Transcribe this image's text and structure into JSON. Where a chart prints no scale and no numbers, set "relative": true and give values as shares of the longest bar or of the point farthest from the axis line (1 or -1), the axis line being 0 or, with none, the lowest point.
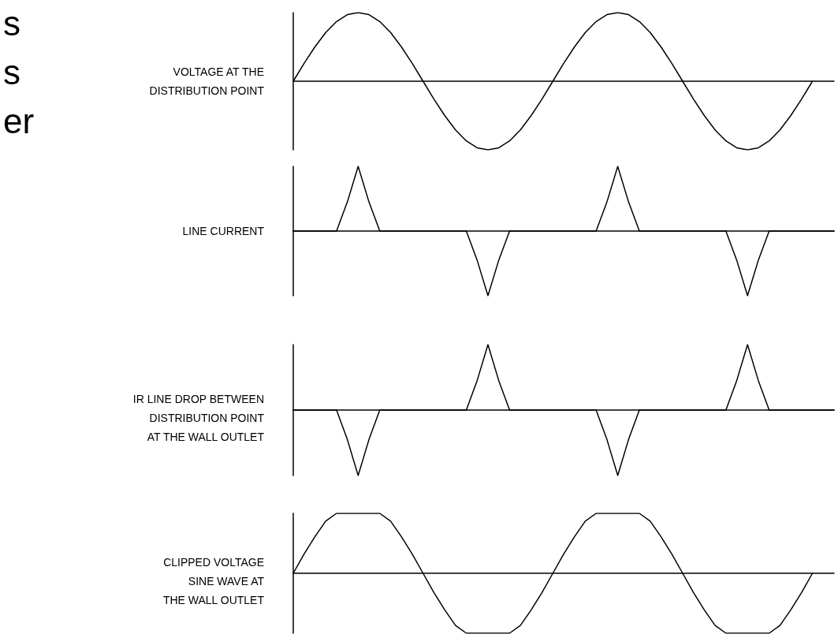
{
  "chart_data": [
    {
      "type": "line",
      "relative": true,
      "marker": "none",
      "ylabel": "VOLTAGE AT THE\nDISTRIBUTION POINT",
      "annotations": [
        "s",
        "s",
        "er"
      ],
      "categories": [
        null,
        null,
        null,
        null,
        null,
        null,
        null,
        null,
        null,
        null,
        null,
        null,
        null,
        null,
        null,
        null,
        null,
        null,
        null,
        null,
        null,
        null,
        null,
        null,
        null,
        null,
        null,
        null,
        null,
        null,
        null,
        null,
        null,
        null,
        null,
        null,
        null,
        null,
        null,
        null,
        null,
        null,
        null,
        null,
        null,
        null,
        null,
        null,
        null,
        null,
        null
      ],
      "series": [
        {
          "color": "#000000",
          "values": [
            0,
            0.26,
            0.5,
            0.71,
            0.87,
            0.97,
            1,
            0.97,
            0.87,
            0.71,
            0.5,
            0.26,
            0,
            -0.26,
            -0.5,
            -0.71,
            -0.87,
            -0.97,
            -1,
            -0.97,
            -0.87,
            -0.71,
            -0.5,
            -0.26,
            0,
            0.26,
            0.5,
            0.71,
            0.87,
            0.97,
            1,
            0.97,
            0.87,
            0.71,
            0.5,
            0.26,
            0,
            -0.26,
            -0.5,
            -0.71,
            -0.87,
            -0.97,
            -1,
            -0.97,
            -0.87,
            -0.71,
            -0.5,
            -0.26,
            0,
            null,
            null
          ]
        }
      ]
    },
    {
      "type": "line",
      "relative": true,
      "marker": "none",
      "ylabel": "LINE CURRENT",
      "categories": [
        null,
        null,
        null,
        null,
        null,
        null,
        null,
        null,
        null,
        null,
        null,
        null,
        null,
        null,
        null,
        null,
        null,
        null,
        null,
        null,
        null,
        null,
        null,
        null,
        null,
        null,
        null,
        null,
        null,
        null,
        null,
        null,
        null,
        null,
        null,
        null,
        null,
        null,
        null,
        null,
        null,
        null,
        null,
        null,
        null,
        null,
        null,
        null,
        null,
        null,
        null
      ],
      "series": [
        {
          "color": "#000000",
          "values": [
            0,
            0,
            0,
            0,
            0,
            0.45,
            1,
            0.45,
            0,
            0,
            0,
            0,
            0,
            0,
            0,
            0,
            0,
            -0.45,
            -1,
            -0.45,
            0,
            0,
            0,
            0,
            0,
            0,
            0,
            0,
            0,
            0.45,
            1,
            0.45,
            0,
            0,
            0,
            0,
            0,
            0,
            0,
            0,
            0,
            -0.45,
            -1,
            -0.45,
            0,
            0,
            0,
            0,
            0,
            0,
            0
          ]
        }
      ]
    },
    {
      "type": "line",
      "relative": true,
      "marker": "none",
      "ylabel": "IR LINE DROP BETWEEN\nDISTRIBUTION POINT\nAT THE WALL OUTLET",
      "categories": [
        null,
        null,
        null,
        null,
        null,
        null,
        null,
        null,
        null,
        null,
        null,
        null,
        null,
        null,
        null,
        null,
        null,
        null,
        null,
        null,
        null,
        null,
        null,
        null,
        null,
        null,
        null,
        null,
        null,
        null,
        null,
        null,
        null,
        null,
        null,
        null,
        null,
        null,
        null,
        null,
        null,
        null,
        null,
        null,
        null,
        null,
        null,
        null,
        null,
        null,
        null
      ],
      "series": [
        {
          "color": "#000000",
          "values": [
            0,
            0,
            0,
            0,
            0,
            -0.45,
            -1,
            -0.45,
            0,
            0,
            0,
            0,
            0,
            0,
            0,
            0,
            0,
            0.45,
            1,
            0.45,
            0,
            0,
            0,
            0,
            0,
            0,
            0,
            0,
            0,
            -0.45,
            -1,
            -0.45,
            0,
            0,
            0,
            0,
            0,
            0,
            0,
            0,
            0,
            0.45,
            1,
            0.45,
            0,
            0,
            0,
            0,
            0,
            0,
            0
          ]
        }
      ]
    },
    {
      "type": "line",
      "relative": true,
      "marker": "none",
      "ylabel": "CLIPPED VOLTAGE\nSINE WAVE AT\nTHE WALL OUTLET",
      "categories": [
        null,
        null,
        null,
        null,
        null,
        null,
        null,
        null,
        null,
        null,
        null,
        null,
        null,
        null,
        null,
        null,
        null,
        null,
        null,
        null,
        null,
        null,
        null,
        null,
        null,
        null,
        null,
        null,
        null,
        null,
        null,
        null,
        null,
        null,
        null,
        null,
        null,
        null,
        null,
        null,
        null,
        null,
        null,
        null,
        null,
        null,
        null,
        null,
        null,
        null,
        null
      ],
      "series": [
        {
          "color": "#000000",
          "values": [
            0,
            0.32,
            0.61,
            0.87,
            1,
            1,
            1,
            1,
            1,
            0.87,
            0.61,
            0.32,
            0,
            -0.32,
            -0.61,
            -0.87,
            -1,
            -1,
            -1,
            -1,
            -1,
            -0.87,
            -0.61,
            -0.32,
            0,
            0.32,
            0.61,
            0.87,
            1,
            1,
            1,
            1,
            1,
            0.87,
            0.61,
            0.32,
            0,
            -0.32,
            -0.61,
            -0.87,
            -1,
            -1,
            -1,
            -1,
            -1,
            -0.87,
            -0.61,
            -0.32,
            0,
            null,
            null
          ]
        }
      ]
    }
  ]
}
